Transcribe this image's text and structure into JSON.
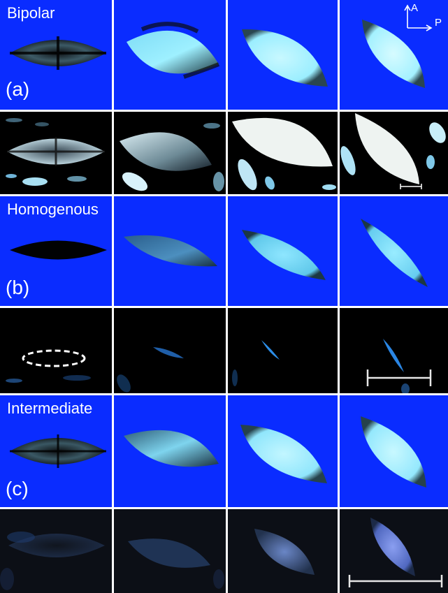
{
  "colors": {
    "blue_background": "#0a2cff",
    "dark_background": "#000000",
    "dim_background": "#0c0f16",
    "separator": "#ffffff",
    "bright_droplet": "#e8f4ff",
    "cyan_droplet": "#8fe8ff",
    "dim_blue_droplet": "#3a6cbf"
  },
  "rows": [
    {
      "title": "Bipolar",
      "letter": "(a)"
    },
    {
      "title": "",
      "letter": ""
    },
    {
      "title": "Homogenous",
      "letter": "(b)"
    },
    {
      "title": "",
      "letter": ""
    },
    {
      "title": "Intermediate",
      "letter": "(c)"
    },
    {
      "title": "",
      "letter": ""
    }
  ],
  "polarizer_axes": {
    "analyzer": "A",
    "polarizer": "P"
  },
  "icons": [
    "analyzer-arrow-icon",
    "polarizer-arrow-icon",
    "scale-bar-icon",
    "dashed-outline-icon"
  ]
}
